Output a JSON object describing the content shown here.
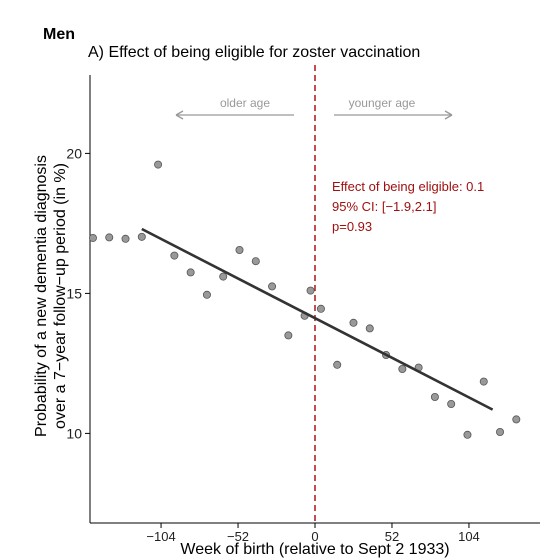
{
  "header": {
    "group_label": "Men",
    "panel_title": "A) Effect of being eligible for zoster vaccination"
  },
  "chart_data": {
    "type": "scatter",
    "xlabel": "Week of birth (relative to Sept 2 1933)",
    "ylabel_line1": "Probability of a new dementia diagnosis",
    "ylabel_line2": "over a 7−year follow−up period (in %)",
    "x_ticks": [
      -104,
      -52,
      0,
      52,
      104
    ],
    "x_tick_labels": [
      "−104",
      "−52",
      "0",
      "52",
      "104"
    ],
    "y_ticks": [
      10,
      15,
      20
    ],
    "y_tick_labels": [
      "10",
      "15",
      "20"
    ],
    "xlim": [
      -152,
      152
    ],
    "ylim": [
      6.8,
      22.8
    ],
    "cutoff_x": 0,
    "grid": false,
    "points": [
      {
        "x": -150,
        "y": 16.98
      },
      {
        "x": -139,
        "y": 17.0
      },
      {
        "x": -128,
        "y": 16.95
      },
      {
        "x": -117,
        "y": 17.02
      },
      {
        "x": -106,
        "y": 19.6
      },
      {
        "x": -95,
        "y": 16.35
      },
      {
        "x": -84,
        "y": 15.75
      },
      {
        "x": -73,
        "y": 14.95
      },
      {
        "x": -62,
        "y": 15.6
      },
      {
        "x": -51,
        "y": 16.55
      },
      {
        "x": -40,
        "y": 16.15
      },
      {
        "x": -29,
        "y": 15.25
      },
      {
        "x": -18,
        "y": 13.5
      },
      {
        "x": -7,
        "y": 14.2
      },
      {
        "x": -3,
        "y": 15.1
      },
      {
        "x": 4,
        "y": 14.45
      },
      {
        "x": 15,
        "y": 12.45
      },
      {
        "x": 26,
        "y": 13.95
      },
      {
        "x": 37,
        "y": 13.75
      },
      {
        "x": 48,
        "y": 12.8
      },
      {
        "x": 59,
        "y": 12.3
      },
      {
        "x": 70,
        "y": 12.35
      },
      {
        "x": 81,
        "y": 11.3
      },
      {
        "x": 92,
        "y": 11.05
      },
      {
        "x": 103,
        "y": 9.95
      },
      {
        "x": 114,
        "y": 11.85
      },
      {
        "x": 125,
        "y": 10.05
      },
      {
        "x": 136,
        "y": 10.5
      }
    ],
    "fit_line": {
      "x": [
        -117,
        120
      ],
      "y": [
        17.3,
        10.85
      ]
    },
    "annotation": {
      "line1": "Effect of being eligible: 0.1",
      "line2": "95% CI: [−1.9,2.1]",
      "line3": "p=0.93",
      "color": "#a01010"
    },
    "arrows": {
      "left_label": "older age",
      "right_label": "younger age",
      "color": "#999999"
    },
    "colors": {
      "points": "#999999",
      "fit_line": "#333333",
      "cutoff_line": "#b22222"
    }
  }
}
